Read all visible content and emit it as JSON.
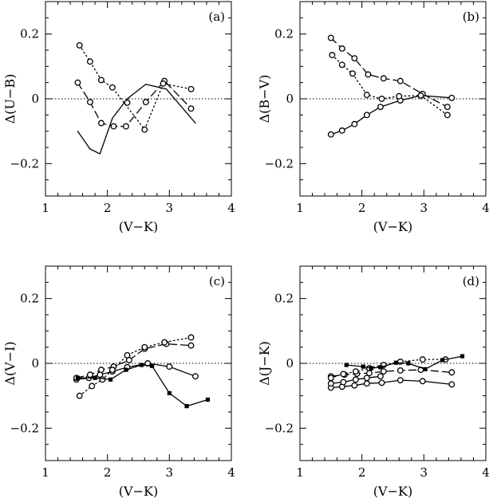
{
  "chart_data": [
    {
      "type": "line",
      "panel_label": "(a)",
      "xlabel": "(V−K)",
      "ylabel": "Δ(U−B)",
      "xlim": [
        1,
        4
      ],
      "ylim": [
        -0.3,
        0.3
      ],
      "xticks": [
        "1",
        "2",
        "3",
        "4"
      ],
      "yticks": [
        "−0.2",
        "0",
        "0.2"
      ],
      "zero_line": true,
      "series": [
        {
          "style": "solid",
          "marker": "none",
          "x": [
            1.52,
            1.72,
            1.88,
            2.08,
            2.32,
            2.62,
            2.95,
            3.42
          ],
          "y": [
            -0.1,
            -0.155,
            -0.17,
            -0.06,
            0.0,
            0.045,
            0.03,
            -0.075
          ]
        },
        {
          "style": "dashed",
          "marker": "circle",
          "x": [
            1.52,
            1.72,
            1.9,
            2.1,
            2.3,
            2.62,
            2.92,
            3.35
          ],
          "y": [
            0.05,
            -0.01,
            -0.075,
            -0.085,
            -0.085,
            -0.01,
            0.055,
            -0.03
          ]
        },
        {
          "style": "dotted",
          "marker": "circle",
          "x": [
            1.55,
            1.72,
            1.9,
            2.08,
            2.6,
            2.9,
            3.35
          ],
          "y": [
            0.165,
            0.115,
            0.058,
            0.035,
            -0.095,
            0.047,
            0.03
          ]
        },
        {
          "style": "none",
          "marker": "circle",
          "x": [
            2.32
          ],
          "y": [
            -0.012
          ]
        }
      ]
    },
    {
      "type": "line",
      "panel_label": "(b)",
      "xlabel": "(V−K)",
      "ylabel": "Δ(B−V)",
      "xlim": [
        1,
        4
      ],
      "ylim": [
        -0.3,
        0.3
      ],
      "xticks": [
        "1",
        "2",
        "3",
        "4"
      ],
      "yticks": [
        "−0.2",
        "0",
        "0.2"
      ],
      "zero_line": true,
      "series": [
        {
          "style": "solid",
          "marker": "circle",
          "x": [
            1.5,
            1.68,
            1.88,
            2.08,
            2.3,
            2.62,
            2.95,
            3.45
          ],
          "y": [
            -0.11,
            -0.098,
            -0.078,
            -0.05,
            -0.025,
            -0.005,
            0.01,
            0.003
          ]
        },
        {
          "style": "dashed",
          "marker": "circle",
          "x": [
            1.5,
            1.68,
            1.88,
            2.1,
            2.35,
            2.62,
            2.98,
            3.38
          ],
          "y": [
            0.188,
            0.155,
            0.125,
            0.075,
            0.063,
            0.055,
            0.015,
            -0.025
          ]
        },
        {
          "style": "dotted",
          "marker": "circle",
          "x": [
            1.52,
            1.68,
            1.85,
            2.08,
            2.32,
            2.6,
            2.95,
            3.38
          ],
          "y": [
            0.135,
            0.105,
            0.078,
            0.012,
            0.0,
            0.008,
            0.01,
            -0.05
          ]
        }
      ]
    },
    {
      "type": "line",
      "panel_label": "(c)",
      "xlabel": "(V−K)",
      "ylabel": "Δ(V−I)",
      "xlim": [
        1,
        4
      ],
      "ylim": [
        -0.3,
        0.3
      ],
      "xticks": [
        "1",
        "2",
        "3",
        "4"
      ],
      "yticks": [
        "−0.2",
        "0",
        "0.2"
      ],
      "zero_line": true,
      "series": [
        {
          "style": "solid",
          "marker": "circle",
          "x": [
            1.5,
            1.7,
            1.88,
            2.08,
            2.32,
            2.65,
            3.0,
            3.42
          ],
          "y": [
            -0.05,
            -0.045,
            -0.035,
            -0.025,
            -0.012,
            0.0,
            -0.01,
            -0.04
          ]
        },
        {
          "style": "dashed",
          "marker": "circle",
          "x": [
            1.5,
            1.72,
            1.9,
            2.1,
            2.35,
            2.6,
            2.95,
            3.35
          ],
          "y": [
            -0.045,
            -0.035,
            -0.02,
            -0.01,
            0.01,
            0.045,
            0.06,
            0.055
          ]
        },
        {
          "style": "dotted",
          "marker": "circle",
          "x": [
            1.55,
            1.75,
            1.92,
            2.08,
            2.32,
            2.6,
            2.92,
            3.35
          ],
          "y": [
            -0.1,
            -0.07,
            -0.05,
            -0.02,
            0.025,
            0.05,
            0.065,
            0.08
          ]
        },
        {
          "style": "solid",
          "marker": "square",
          "x": [
            1.52,
            1.8,
            2.05,
            2.3,
            2.55,
            2.72,
            3.0,
            3.28,
            3.62
          ],
          "y": [
            -0.045,
            -0.045,
            -0.05,
            -0.02,
            -0.005,
            -0.008,
            -0.092,
            -0.132,
            -0.112
          ]
        }
      ]
    },
    {
      "type": "line",
      "panel_label": "(d)",
      "xlabel": "(V−K)",
      "ylabel": "Δ(J−K)",
      "xlim": [
        1,
        4
      ],
      "ylim": [
        -0.3,
        0.3
      ],
      "xticks": [
        "1",
        "2",
        "3",
        "4"
      ],
      "yticks": [
        "−0.2",
        "0",
        "0.2"
      ],
      "zero_line": true,
      "series": [
        {
          "style": "solid",
          "marker": "circle",
          "x": [
            1.5,
            1.68,
            1.88,
            2.08,
            2.32,
            2.62,
            2.98,
            3.45
          ],
          "y": [
            -0.075,
            -0.072,
            -0.068,
            -0.062,
            -0.06,
            -0.052,
            -0.055,
            -0.065
          ]
        },
        {
          "style": "solid",
          "marker": "circle",
          "x": [
            1.5,
            1.7,
            1.9,
            2.08,
            2.3
          ],
          "y": [
            -0.062,
            -0.058,
            -0.05,
            -0.045,
            -0.04
          ]
        },
        {
          "style": "dashed",
          "marker": "circle",
          "x": [
            1.5,
            1.72,
            1.92,
            2.12,
            2.35,
            2.62,
            2.95,
            3.45
          ],
          "y": [
            -0.04,
            -0.035,
            -0.032,
            -0.03,
            -0.025,
            -0.022,
            -0.02,
            -0.028
          ]
        },
        {
          "style": "dotted",
          "marker": "circle",
          "x": [
            1.5,
            1.7,
            1.9,
            2.12,
            2.35,
            2.62,
            2.98,
            3.35
          ],
          "y": [
            -0.045,
            -0.033,
            -0.025,
            -0.015,
            -0.005,
            0.005,
            0.012,
            0.012
          ]
        },
        {
          "style": "solid",
          "marker": "square",
          "x": [
            1.75,
            2.02,
            2.15,
            2.3,
            2.55,
            2.75,
            3.02,
            3.3,
            3.62
          ],
          "y": [
            -0.005,
            -0.01,
            -0.015,
            -0.012,
            0.002,
            0.0,
            -0.018,
            0.01,
            0.022
          ]
        }
      ]
    }
  ]
}
